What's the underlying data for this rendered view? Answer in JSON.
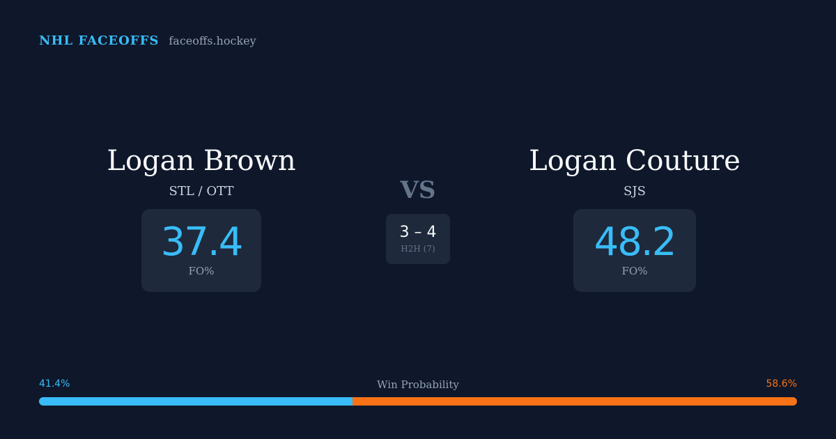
{
  "brand": {
    "name": "NHL FACEOFFS",
    "domain": "faceoffs.hockey"
  },
  "player_left": {
    "name": "Logan Brown",
    "team": "STL / OTT",
    "stat_value": "37.4",
    "stat_label": "FO%"
  },
  "player_right": {
    "name": "Logan Couture",
    "team": "SJS",
    "stat_value": "48.2",
    "stat_label": "FO%"
  },
  "matchup": {
    "vs_label": "VS",
    "h2h_score": "3 – 4",
    "h2h_label": "H2H (7)"
  },
  "win_probability": {
    "title": "Win Probability",
    "left_label": "41.4%",
    "right_label": "58.6%",
    "left_value": 41.4,
    "right_value": 58.6
  },
  "colors": {
    "background": "#0f172a",
    "accent_left": "#38bdf8",
    "accent_right": "#f97316",
    "card": "#1e293b"
  }
}
